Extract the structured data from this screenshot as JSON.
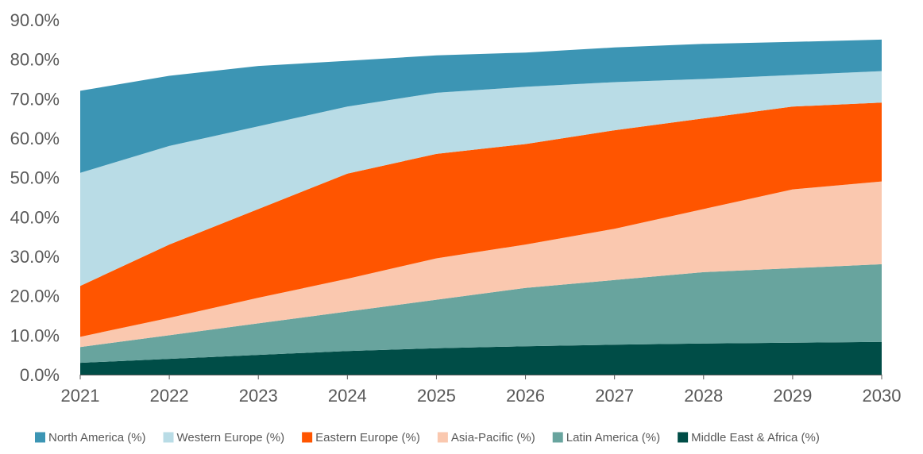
{
  "chart_data": {
    "type": "area",
    "stacked": true,
    "x": [
      2021,
      2022,
      2023,
      2024,
      2025,
      2026,
      2027,
      2028,
      2029,
      2030
    ],
    "x_tick_labels": [
      "2021",
      "2022",
      "2023",
      "2024",
      "2025",
      "2026",
      "2027",
      "2028",
      "2029",
      "2030"
    ],
    "ylim": [
      0,
      90
    ],
    "y_ticks": [
      0,
      10,
      20,
      30,
      40,
      50,
      60,
      70,
      80,
      90
    ],
    "y_tick_labels": [
      "0.0%",
      "10.0%",
      "20.0%",
      "30.0%",
      "40.0%",
      "50.0%",
      "60.0%",
      "70.0%",
      "80.0%",
      "90.0%"
    ],
    "grid": false,
    "legend_position": "bottom",
    "series": [
      {
        "name": "Middle East & Africa (%)",
        "color": "#004D47",
        "values": [
          3,
          4,
          5,
          6,
          6.7,
          7.2,
          7.6,
          7.9,
          8.1,
          8.3
        ]
      },
      {
        "name": "Latin America (%)",
        "color": "#68A49E",
        "values": [
          4,
          6,
          8,
          10,
          12.3,
          14.8,
          16.4,
          18.1,
          18.9,
          19.7
        ]
      },
      {
        "name": "Asia-Pacific (%)",
        "color": "#FAC8AF",
        "values": [
          2.6,
          4.4,
          6.5,
          8.3,
          10.5,
          11,
          13,
          16,
          20,
          21
        ]
      },
      {
        "name": "Eastern Europe (%)",
        "color": "#FF5500",
        "values": [
          12.9,
          18.6,
          22.5,
          26.7,
          26.5,
          25.5,
          25,
          23,
          21,
          20
        ]
      },
      {
        "name": "Western Europe (%)",
        "color": "#B9DCE6",
        "values": [
          28.7,
          25,
          21,
          17,
          15.5,
          14.5,
          12.2,
          10,
          8,
          8
        ]
      },
      {
        "name": "North America (%)",
        "color": "#3C95B4",
        "values": [
          20.8,
          17.8,
          15.3,
          11.6,
          9.5,
          8.7,
          8.8,
          8.9,
          8.4,
          8
        ]
      }
    ],
    "legend_order": [
      "North America (%)",
      "Western Europe (%)",
      "Eastern Europe (%)",
      "Asia-Pacific (%)",
      "Latin America (%)",
      "Middle East & Africa (%)"
    ],
    "title": "",
    "xlabel": "",
    "ylabel": ""
  }
}
